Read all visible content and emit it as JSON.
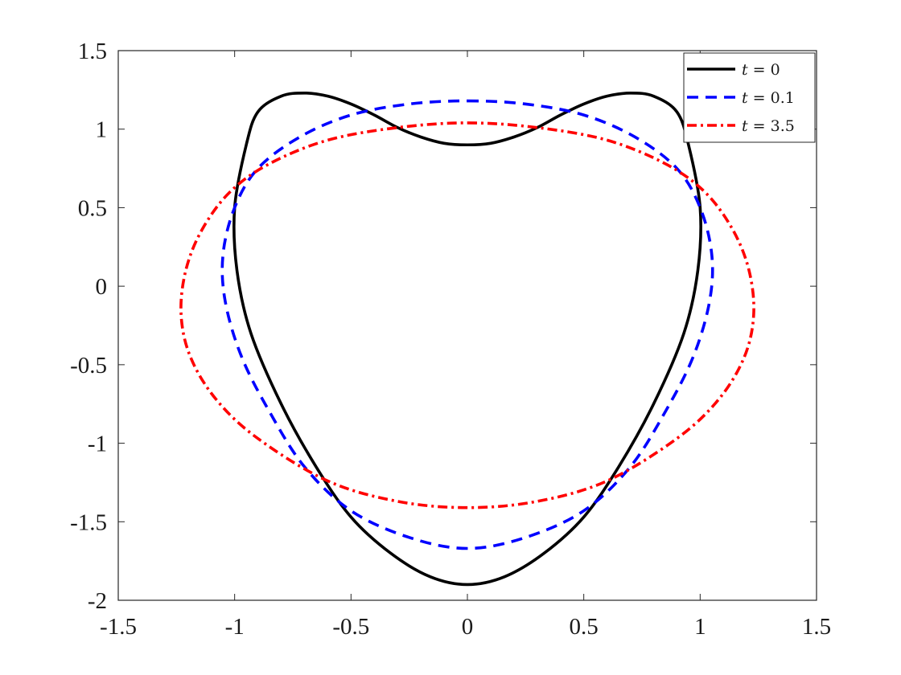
{
  "chart_data": {
    "type": "line",
    "title": "",
    "xlabel": "",
    "ylabel": "",
    "xlim": [
      -1.5,
      1.5
    ],
    "ylim": [
      -2,
      1.5
    ],
    "grid": false,
    "legend_position": "top-right",
    "x_ticks": [
      -1.5,
      -1,
      -0.5,
      0,
      0.5,
      1,
      1.5
    ],
    "x_tick_labels": [
      "-1.5",
      "-1",
      "-0.5",
      "0",
      "0.5",
      "1",
      "1.5"
    ],
    "y_ticks": [
      1.5,
      1,
      0.5,
      0,
      -0.5,
      -1,
      -1.5,
      -2
    ],
    "y_tick_labels": [
      "1.5",
      "1",
      "0.5",
      "0",
      "-0.5",
      "-1",
      "-1.5",
      "-2"
    ],
    "series": [
      {
        "name": "t = 0",
        "legend_var": "t",
        "legend_value": "0",
        "color": "#000000",
        "line_style": "solid",
        "x": [
          0.0,
          0.1,
          0.2,
          0.3,
          0.4,
          0.5,
          0.6,
          0.7,
          0.8,
          0.9,
          0.95,
          1.0,
          0.99,
          0.93,
          0.8,
          0.65,
          0.5,
          0.33,
          0.16,
          0.0,
          -0.16,
          -0.33,
          -0.5,
          -0.65,
          -0.8,
          -0.93,
          -0.99,
          -1.0,
          -0.95,
          -0.9,
          -0.8,
          -0.7,
          -0.6,
          -0.5,
          -0.4,
          -0.3,
          -0.2,
          -0.1,
          0.0
        ],
        "y": [
          0.9,
          0.91,
          0.95,
          1.01,
          1.09,
          1.16,
          1.21,
          1.23,
          1.21,
          1.11,
          0.9,
          0.5,
          0.1,
          -0.3,
          -0.75,
          -1.15,
          -1.47,
          -1.7,
          -1.85,
          -1.9,
          -1.85,
          -1.7,
          -1.47,
          -1.15,
          -0.75,
          -0.3,
          0.1,
          0.5,
          0.9,
          1.11,
          1.21,
          1.23,
          1.21,
          1.16,
          1.09,
          1.01,
          0.95,
          0.91,
          0.9
        ]
      },
      {
        "name": "t = 0.1",
        "legend_var": "t",
        "legend_value": "0.1",
        "color": "#0000ff",
        "line_style": "dashed",
        "x": [
          0.0,
          0.25,
          0.5,
          0.72,
          0.9,
          1.0,
          1.05,
          1.04,
          0.97,
          0.85,
          0.7,
          0.5,
          0.25,
          0.0,
          -0.25,
          -0.5,
          -0.7,
          -0.85,
          -0.97,
          -1.04,
          -1.05,
          -1.0,
          -0.9,
          -0.72,
          -0.5,
          -0.25,
          0.0
        ],
        "y": [
          1.18,
          1.16,
          1.09,
          0.95,
          0.75,
          0.5,
          0.2,
          -0.1,
          -0.45,
          -0.8,
          -1.15,
          -1.43,
          -1.6,
          -1.67,
          -1.6,
          -1.43,
          -1.15,
          -0.8,
          -0.45,
          -0.1,
          0.2,
          0.5,
          0.75,
          0.95,
          1.09,
          1.16,
          1.18
        ]
      },
      {
        "name": "t = 3.5",
        "legend_var": "t",
        "legend_value": "3.5",
        "color": "#ff0000",
        "line_style": "dashdot",
        "x": [
          0.0,
          0.3,
          0.6,
          0.85,
          1.02,
          1.14,
          1.21,
          1.23,
          1.19,
          1.08,
          0.9,
          0.6,
          0.3,
          0.0,
          -0.3,
          -0.6,
          -0.9,
          -1.08,
          -1.19,
          -1.23,
          -1.21,
          -1.14,
          -1.02,
          -0.85,
          -0.6,
          -0.3,
          0.0
        ],
        "y": [
          1.04,
          1.01,
          0.93,
          0.78,
          0.6,
          0.36,
          0.1,
          -0.18,
          -0.45,
          -0.72,
          -0.97,
          -1.24,
          -1.37,
          -1.41,
          -1.37,
          -1.24,
          -0.97,
          -0.72,
          -0.45,
          -0.18,
          0.1,
          0.36,
          0.6,
          0.78,
          0.93,
          1.01,
          1.04
        ]
      }
    ]
  }
}
